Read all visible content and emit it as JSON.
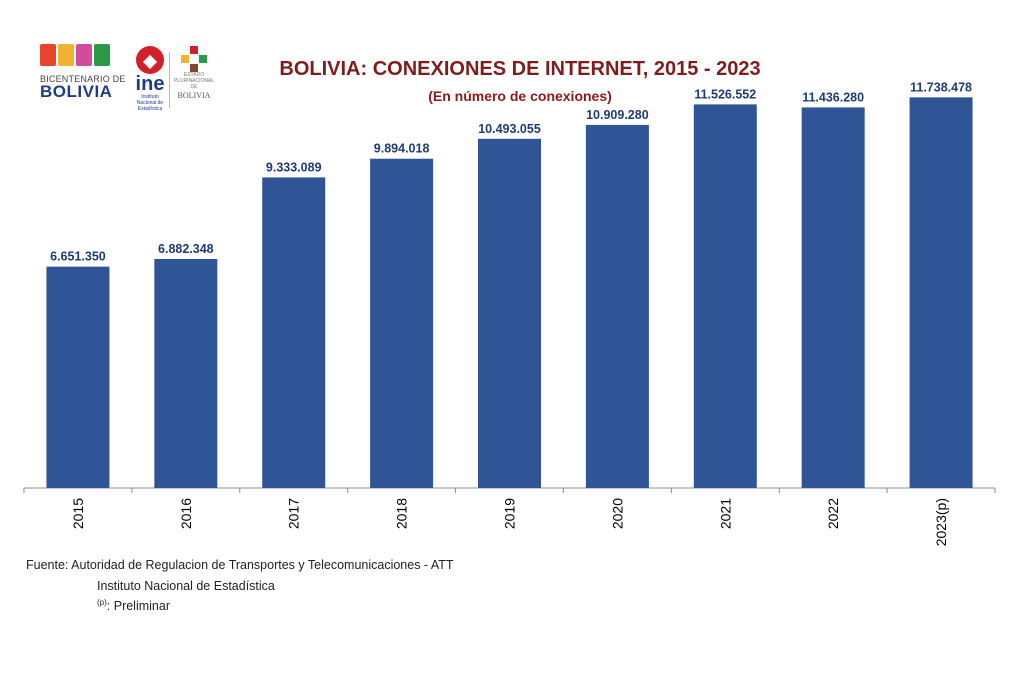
{
  "logos": {
    "bicentenario_small": "BICENTENARIO DE",
    "bicentenario_big": "BOLIVIA",
    "ine_text": "ine",
    "ine_sub": "Instituto Nacional de Estadística",
    "estado_text": "BOLIVIA",
    "estado_sub": "ESTADO PLURINACIONAL DE"
  },
  "source": {
    "line1": "Fuente: Autoridad de Regulacion de Transportes y Telecomunicaciones - ATT",
    "line2": "Instituto Nacional de Estadística",
    "note_mark": "(p)",
    "note_text": ": Preliminar"
  },
  "colors": {
    "bar": "#2f5597",
    "title": "#7f1d1d",
    "data_label": "#1f3c72"
  },
  "chart_data": {
    "type": "bar",
    "title": "BOLIVIA: CONEXIONES DE INTERNET, 2015 - 2023",
    "subtitle": "(En número de conexiones)",
    "categories": [
      "2015",
      "2016",
      "2017",
      "2018",
      "2019",
      "2020",
      "2021",
      "2022",
      "2023(p)"
    ],
    "values": [
      6651350,
      6882348,
      9333089,
      9894018,
      10493055,
      10909280,
      11526552,
      11436280,
      11738478
    ],
    "labels": [
      "6.651.350",
      "6.882.348",
      "9.333.089",
      "9.894.018",
      "10.493.055",
      "10.909.280",
      "11.526.552",
      "11.436.280",
      "11.738.478"
    ],
    "xlabel": "",
    "ylabel": "",
    "ylim": [
      0,
      12500000
    ],
    "grid": false,
    "y_axis_visible": false,
    "tick_label_rotation": "vertical"
  }
}
